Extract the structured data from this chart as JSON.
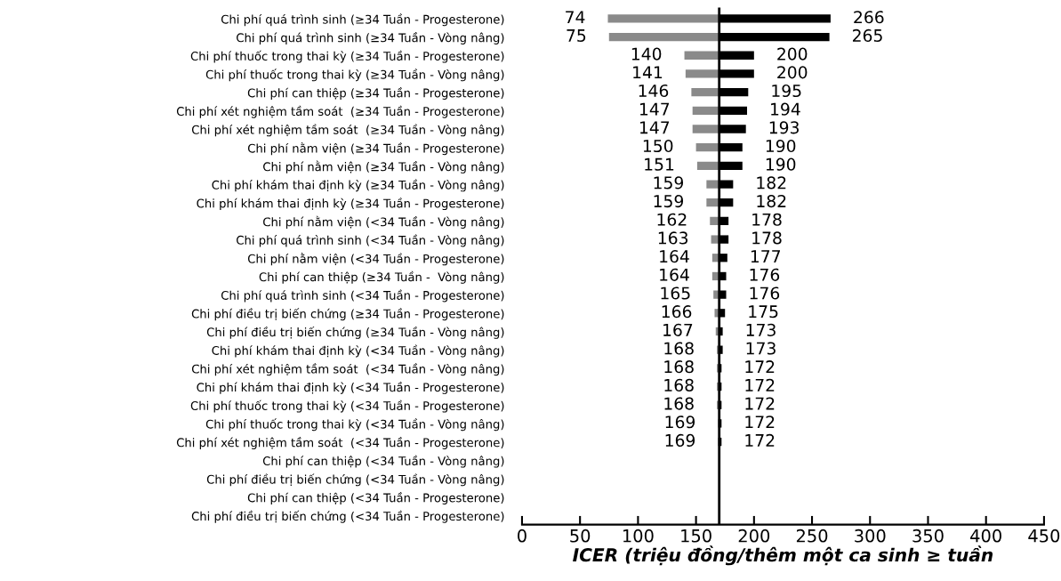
{
  "chart_data": {
    "type": "bar",
    "orientation": "horizontal",
    "xlabel": "ICER (triệu đồng/thêm một ca sinh ≥ tuần",
    "categories": [
      "Chi phí quá trình sinh (≥34 Tuần - Progesterone)",
      "Chi phí quá trình sinh (≥34 Tuần - Vòng nâng)",
      "Chi phí thuốc trong thai kỳ (≥34 Tuần - Progesterone)",
      "Chi phí thuốc trong thai kỳ (≥34 Tuần - Vòng nâng)",
      "Chi phí can thiệp (≥34 Tuần - Progesterone)",
      "Chi phí xét nghiệm tầm soát  (≥34 Tuần - Progesterone)",
      "Chi phí xét nghiệm tầm soát  (≥34 Tuần - Vòng nâng)",
      "Chi phí nằm viện (≥34 Tuần - Progesterone)",
      "Chi phí nằm viện (≥34 Tuần - Vòng nâng)",
      "Chi phí khám thai định kỳ (≥34 Tuần - Vòng nâng)",
      "Chi phí khám thai định kỳ (≥34 Tuần - Progesterone)",
      "Chi phí nằm viện (<34 Tuần - Vòng nâng)",
      "Chi phí quá trình sinh (<34 Tuần - Vòng nâng)",
      "Chi phí nằm viện (<34 Tuần - Progesterone)",
      "Chi phí can thiệp (≥34 Tuần -  Vòng nâng)",
      "Chi phí quá trình sinh (<34 Tuần - Progesterone)",
      "Chi phí điều trị biến chứng (≥34 Tuần - Progesterone)",
      "Chi phí điều trị biến chứng (≥34 Tuần - Vòng nâng)",
      "Chi phí khám thai định kỳ (<34 Tuần - Vòng nâng)",
      "Chi phí xét nghiệm tầm soát  (<34 Tuần - Vòng nâng)",
      "Chi phí khám thai định kỳ (<34 Tuần - Progesterone)",
      "Chi phí thuốc trong thai kỳ (<34 Tuần - Progesterone)",
      "Chi phí thuốc trong thai kỳ (<34 Tuần - Vòng nâng)",
      "Chi phí xét nghiệm tầm soát  (<34 Tuần - Progesterone)",
      "Chi phí can thiệp (<34 Tuần - Vòng nâng)",
      "Chi phí điều trị biến chứng (<34 Tuần - Vòng nâng)",
      "Chi phí can thiệp (<34 Tuần - Progesterone)",
      "Chi phí điều trị biến chứng (<34 Tuần - Progesterone)"
    ],
    "series": [
      {
        "color": "#8a8a8a",
        "base": [
          170,
          170,
          170,
          170,
          170,
          170,
          170,
          170,
          170,
          170,
          170,
          170,
          170,
          170,
          170,
          170,
          170,
          170,
          170,
          170,
          170,
          170,
          170,
          170,
          null,
          null,
          null,
          null
        ],
        "values": [
          -96,
          -95,
          -30,
          -29,
          -24,
          -23,
          -23,
          -20,
          -19,
          -11,
          -11,
          -8,
          -7,
          -6,
          -6,
          -5,
          -4,
          -3,
          -2,
          -2,
          -2,
          -2,
          -1,
          -1,
          null,
          null,
          null,
          null
        ],
        "value_labels": [
          "74",
          "75",
          "140",
          "141",
          "146",
          "147",
          "147",
          "150",
          "151",
          "159",
          "159",
          "162",
          "163",
          "164",
          "164",
          "165",
          "166",
          "167",
          "168",
          "168",
          "168",
          "168",
          "169",
          "169",
          null,
          null,
          null,
          null
        ]
      },
      {
        "color": "#000000",
        "base": [
          170,
          170,
          170,
          170,
          170,
          170,
          170,
          170,
          170,
          170,
          170,
          170,
          170,
          170,
          170,
          170,
          170,
          170,
          170,
          170,
          170,
          170,
          170,
          170,
          null,
          null,
          null,
          null
        ],
        "values": [
          96,
          95,
          30,
          30,
          25,
          24,
          23,
          20,
          20,
          12,
          12,
          8,
          8,
          7,
          6,
          6,
          5,
          3,
          3,
          2,
          2,
          2,
          2,
          2,
          null,
          null,
          null,
          null
        ],
        "value_labels": [
          "266",
          "265",
          "200",
          "200",
          "195",
          "194",
          "193",
          "190",
          "190",
          "182",
          "182",
          "178",
          "178",
          "177",
          "176",
          "176",
          "175",
          "173",
          "173",
          "172",
          "172",
          "172",
          "172",
          "172",
          null,
          null,
          null,
          null
        ]
      }
    ],
    "xlim": [
      0,
      450
    ],
    "xticks": [
      0,
      50,
      100,
      150,
      200,
      250,
      300,
      350,
      400,
      450
    ],
    "ref_lines": [
      {
        "axis": "x",
        "value": 170,
        "color": "#000000"
      }
    ],
    "grid": false
  }
}
